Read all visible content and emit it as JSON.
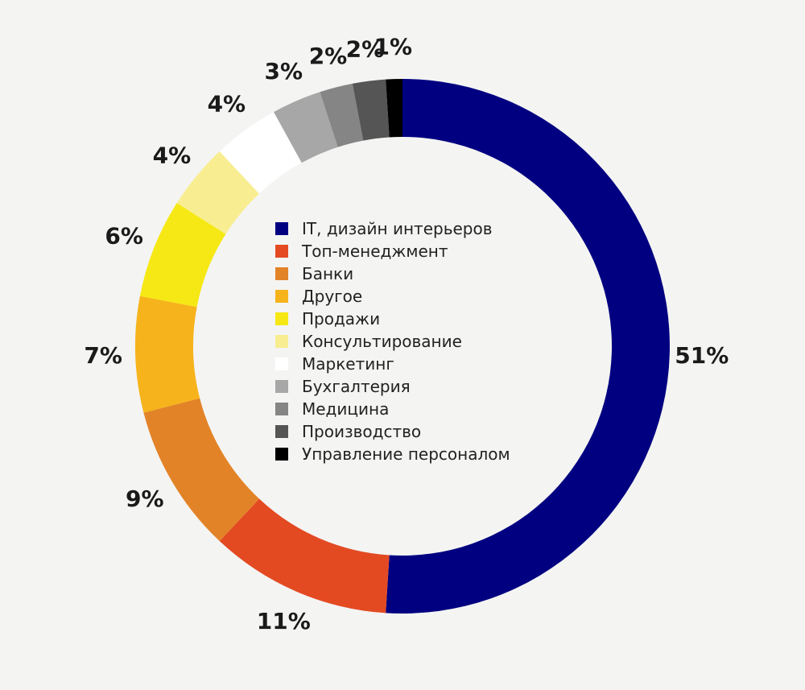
{
  "chart_data": {
    "type": "pie",
    "title": "",
    "legend_position": "center",
    "series": [
      {
        "label": "IT, дизайн интерьеров",
        "value": 51,
        "value_label": "51%",
        "color": "#000080"
      },
      {
        "label": "Топ-менеджмент",
        "value": 11,
        "value_label": "11%",
        "color": "#e34a22"
      },
      {
        "label": "Банки",
        "value": 9,
        "value_label": "9%",
        "color": "#e38327"
      },
      {
        "label": "Другое",
        "value": 7,
        "value_label": "7%",
        "color": "#f6b31b"
      },
      {
        "label": "Продажи",
        "value": 6,
        "value_label": "6%",
        "color": "#f6e814"
      },
      {
        "label": "Консультирование",
        "value": 4,
        "value_label": "4%",
        "color": "#f8ee91"
      },
      {
        "label": "Маркетинг",
        "value": 4,
        "value_label": "4%",
        "color": "#ffffff"
      },
      {
        "label": "Бухгалтерия",
        "value": 3,
        "value_label": "3%",
        "color": "#a7a7a7"
      },
      {
        "label": "Медицина",
        "value": 2,
        "value_label": "2%",
        "color": "#858585"
      },
      {
        "label": "Производство",
        "value": 2,
        "value_label": "2%",
        "color": "#555555"
      },
      {
        "label": "Управление персоналом",
        "value": 1,
        "value_label": "1%",
        "color": "#000000"
      }
    ]
  }
}
